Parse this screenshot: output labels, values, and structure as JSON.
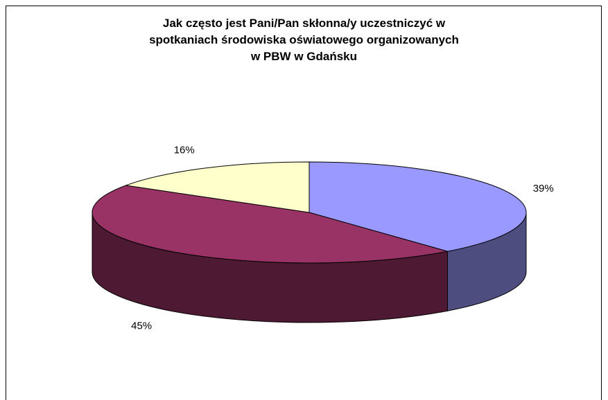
{
  "chart_data": {
    "type": "pie",
    "title_lines": [
      "Jak często jest Pani/Pan skłonna/y uczestniczyć w",
      "spotkaniach środowiska oświatowego organizowanych",
      "w PBW w Gdańsku"
    ],
    "values": [
      39,
      45,
      16
    ],
    "labels": [
      "39%",
      "45%",
      "16%"
    ],
    "colors": {
      "top": [
        "#9999ff",
        "#993366",
        "#ffffcc"
      ],
      "side": [
        "#4d4d80",
        "#4d1933",
        "#808066"
      ]
    },
    "three_d": true,
    "legend": "none"
  }
}
